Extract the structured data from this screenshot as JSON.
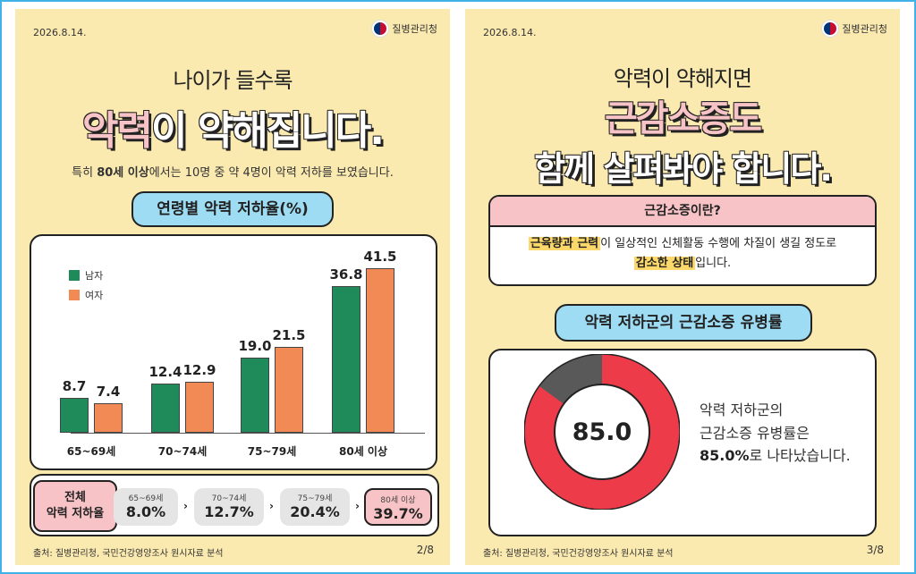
{
  "left_card": {
    "date": "2026.8.14.",
    "org": "질병관리청",
    "headline_sub": "나이가 들수록",
    "headline_pink": "악력",
    "headline_white": "이 약해집니다.",
    "desc_pre": "특히 ",
    "desc_bold": "80세 이상",
    "desc_post": "에서는 10명 중 약 4명이 악력 저하를 보였습니다.",
    "chart_title": "연령별 악력 저하율(%)",
    "summary_label_line1": "전체",
    "summary_label_line2": "악력 저하율",
    "summary": [
      {
        "group": "65~69세",
        "value": "8.0%"
      },
      {
        "group": "70~74세",
        "value": "12.7%"
      },
      {
        "group": "75~79세",
        "value": "20.4%"
      },
      {
        "group": "80세 이상",
        "value": "39.7%"
      }
    ],
    "arrow": "›",
    "source": "출처: 질병관리청, 국민건강영양조사 원시자료 분석",
    "page": "2/8"
  },
  "chart_data": {
    "type": "bar",
    "title": "연령별 악력 저하율(%)",
    "categories": [
      "65~69세",
      "70~74세",
      "75~79세",
      "80세 이상"
    ],
    "series": [
      {
        "name": "남자",
        "values": [
          8.7,
          12.4,
          19.0,
          36.8
        ],
        "color": "#1f8a5a"
      },
      {
        "name": "여자",
        "values": [
          7.4,
          12.9,
          21.5,
          41.5
        ],
        "color": "#f28a55"
      }
    ],
    "value_labels": [
      [
        "8.7",
        "12.4",
        "19.0",
        "36.8"
      ],
      [
        "7.4",
        "12.9",
        "21.5",
        "41.5"
      ]
    ],
    "ylim": [
      0,
      45
    ],
    "legend": "top-left"
  },
  "right_card": {
    "date": "2026.8.14.",
    "org": "질병관리청",
    "line1": "악력이 약해지면",
    "line2": "근감소증도",
    "line3": "함께 살펴봐야 합니다.",
    "def_title": "근감소증이란?",
    "def_hl1": "근육량과 근력",
    "def_text1": "이 일상적인 신체활동 수행에 차질이 생길 정도로",
    "def_hl2": "감소한 상태",
    "def_text2": "입니다.",
    "section_title": "악력 저하군의 근감소증 유병률",
    "donut_value": 85.0,
    "donut_label": "85.0",
    "donut_color": "#ee3b4a",
    "donut_rest_color": "#595959",
    "text_line1": "악력 저하군의",
    "text_line2": "근감소증 유병률은",
    "text_bold": "85.0%",
    "text_rest": "로 나타났습니다.",
    "source": "출처: 질병관리청, 국민건강영양조사 원시자료 분석",
    "page": "3/8"
  }
}
